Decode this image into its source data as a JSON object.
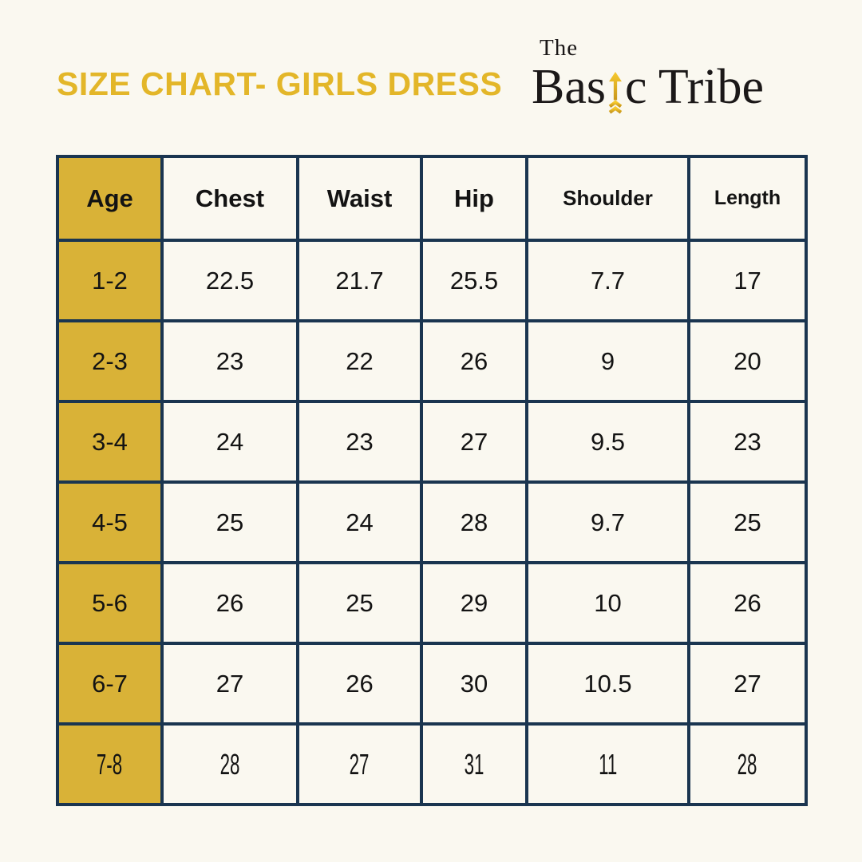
{
  "page": {
    "background_color": "#FAF8F0",
    "title_color": "#E3B629"
  },
  "logo": {
    "the": "The",
    "basic_pre": "Bas",
    "basic_post": "c",
    "tribe": " Tribe",
    "arrow_icon": "up-arrow",
    "arrow_color_top": "#F7CA2E",
    "arrow_color_bottom": "#C8961B",
    "text_color": "#1B1818"
  },
  "table_style": {
    "border_color": "#1A3550",
    "age_column_color": "#D9B237",
    "cell_background": "#FAF8F0"
  },
  "chart_data": {
    "type": "table",
    "title": "SIZE CHART- GIRLS DRESS",
    "columns": [
      "Age",
      "Chest",
      "Waist",
      "Hip",
      "Shoulder",
      "Length"
    ],
    "rows": [
      [
        "1-2",
        "22.5",
        "21.7",
        "25.5",
        "7.7",
        "17"
      ],
      [
        "2-3",
        "23",
        "22",
        "26",
        "9",
        "20"
      ],
      [
        "3-4",
        "24",
        "23",
        "27",
        "9.5",
        "23"
      ],
      [
        "4-5",
        "25",
        "24",
        "28",
        "9.7",
        "25"
      ],
      [
        "5-6",
        "26",
        "25",
        "29",
        "10",
        "26"
      ],
      [
        "6-7",
        "27",
        "26",
        "30",
        "10.5",
        "27"
      ],
      [
        "7-8",
        "28",
        "27",
        "31",
        "11",
        "28"
      ]
    ]
  }
}
